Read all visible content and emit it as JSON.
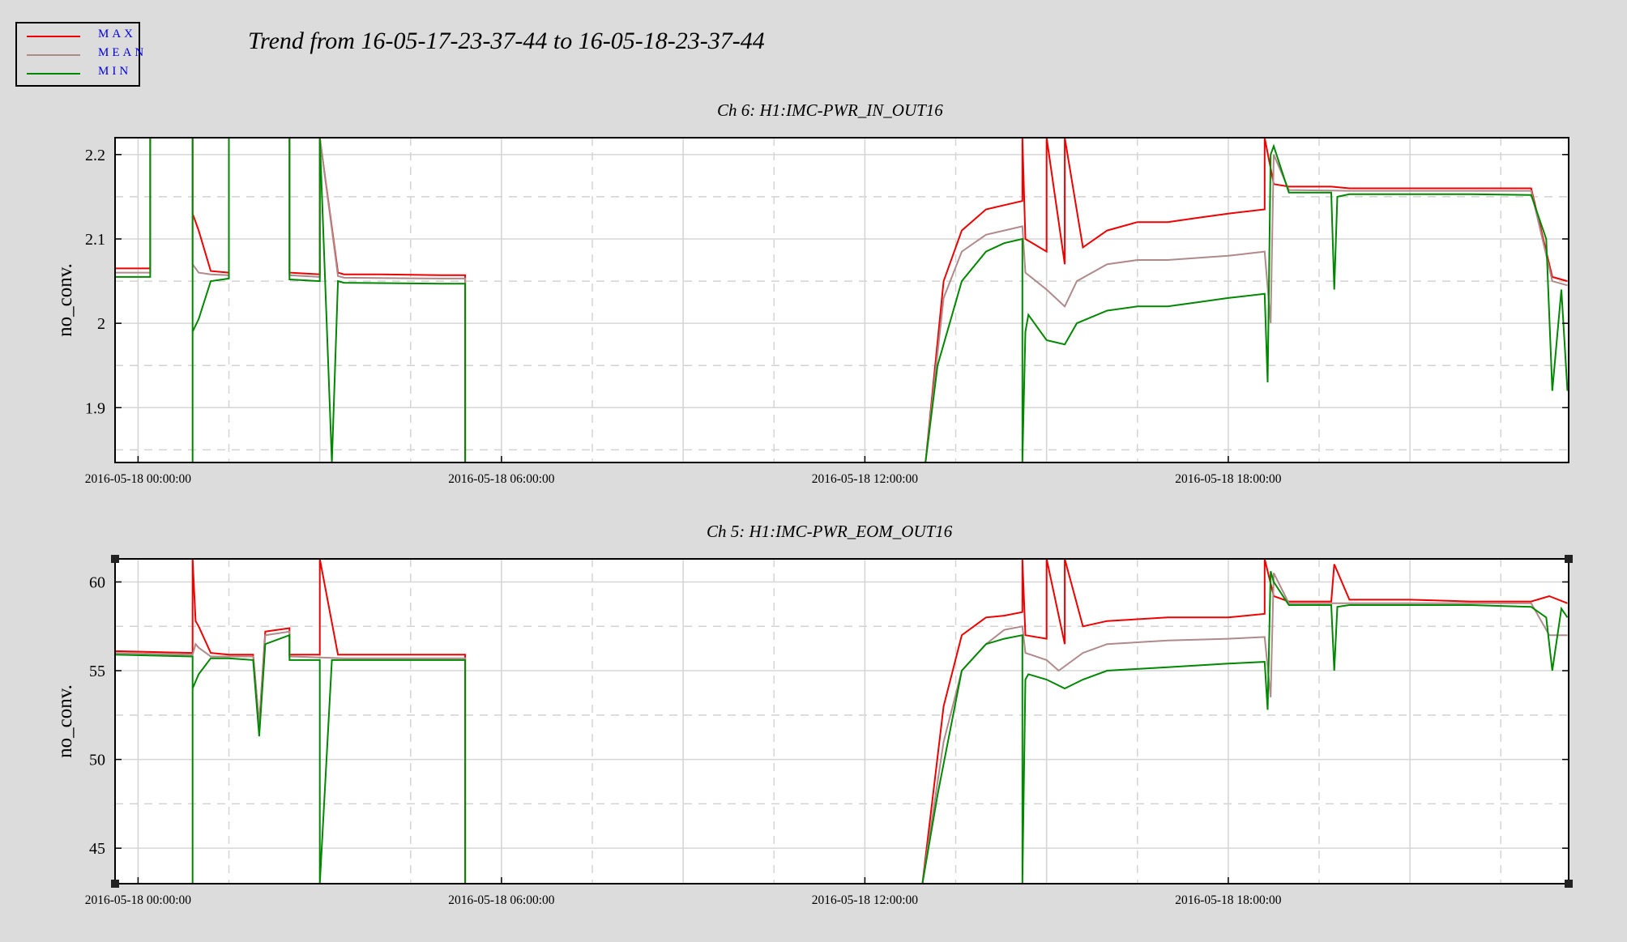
{
  "header": {
    "title": "Trend from 16-05-17-23-37-44 to 16-05-18-23-37-44"
  },
  "legend": {
    "items": [
      {
        "label": "MAX",
        "color": "#ee0000"
      },
      {
        "label": "MEAN",
        "color": "#b08a8a"
      },
      {
        "label": "MIN",
        "color": "#008800"
      }
    ]
  },
  "chart_data": [
    {
      "type": "line",
      "title": "Ch 6: H1:IMC-PWR_IN_OUT16",
      "ylabel": "no_conv.",
      "xlabel": "",
      "x_unit": "hours since 2016-05-18 00:00:00",
      "xlim": [
        -0.38,
        23.62
      ],
      "ylim": [
        1.835,
        2.22
      ],
      "yticks": [
        1.9,
        2.0,
        2.1,
        2.2
      ],
      "ytick_labels": [
        "1.9",
        "2",
        "2.1",
        "2.2"
      ],
      "xticks": [
        0,
        6,
        12,
        18
      ],
      "xtick_labels": [
        "2016-05-18 00:00:00",
        "2016-05-18 06:00:00",
        "2016-05-18 12:00:00",
        "2016-05-18 18:00:00"
      ],
      "grid": true,
      "series": [
        {
          "name": "MAX",
          "color": "#ee0000",
          "x": [
            -0.38,
            0.2,
            0.2,
            0.9,
            0.9,
            1.0,
            1.2,
            1.5,
            1.5,
            2.5,
            2.5,
            3.0,
            3.0,
            3.3,
            3.4,
            4.0,
            5.0,
            5.4,
            5.4,
            13.0,
            13.3,
            13.6,
            14.0,
            14.3,
            14.6,
            14.6,
            14.65,
            15.0,
            15.0,
            15.3,
            15.3,
            15.6,
            16.0,
            16.5,
            17.0,
            17.5,
            18.0,
            18.6,
            18.6,
            18.75,
            19.0,
            19.7,
            20.0,
            20.8,
            21.5,
            22.5,
            23.0,
            23.35,
            23.6
          ],
          "values": [
            2.065,
            2.065,
            2.22,
            2.22,
            2.13,
            2.11,
            2.062,
            2.06,
            2.22,
            2.22,
            2.06,
            2.058,
            2.22,
            2.06,
            2.058,
            2.058,
            2.057,
            2.057,
            1.835,
            1.835,
            2.05,
            2.11,
            2.135,
            2.14,
            2.145,
            2.22,
            2.1,
            2.085,
            2.22,
            2.07,
            2.22,
            2.09,
            2.11,
            2.12,
            2.12,
            2.125,
            2.13,
            2.135,
            2.22,
            2.165,
            2.162,
            2.162,
            2.16,
            2.16,
            2.16,
            2.16,
            2.16,
            2.055,
            2.05
          ]
        },
        {
          "name": "MEAN",
          "color": "#b08a8a",
          "x": [
            -0.38,
            0.2,
            0.2,
            0.9,
            0.9,
            1.0,
            1.2,
            1.5,
            1.5,
            2.5,
            2.5,
            3.0,
            3.0,
            3.3,
            3.4,
            5.0,
            5.4,
            5.4,
            13.0,
            13.3,
            13.6,
            14.0,
            14.3,
            14.6,
            14.65,
            15.0,
            15.3,
            15.5,
            16.0,
            16.5,
            17.0,
            18.0,
            18.6,
            18.7,
            18.75,
            19.0,
            20.0,
            21.0,
            22.0,
            23.0,
            23.35,
            23.6
          ],
          "values": [
            2.06,
            2.06,
            2.22,
            2.22,
            2.07,
            2.06,
            2.058,
            2.057,
            2.22,
            2.22,
            2.057,
            2.055,
            2.22,
            2.056,
            2.054,
            2.053,
            2.053,
            1.835,
            1.835,
            2.03,
            2.085,
            2.105,
            2.11,
            2.115,
            2.06,
            2.04,
            2.02,
            2.05,
            2.07,
            2.075,
            2.075,
            2.08,
            2.085,
            2.0,
            2.2,
            2.158,
            2.157,
            2.157,
            2.157,
            2.157,
            2.05,
            2.045
          ]
        },
        {
          "name": "MIN",
          "color": "#008800",
          "x": [
            -0.38,
            0.2,
            0.2,
            0.9,
            0.9,
            0.9,
            1.0,
            1.2,
            1.5,
            1.5,
            2.5,
            2.5,
            3.0,
            3.0,
            3.2,
            3.3,
            3.4,
            5.0,
            5.4,
            5.4,
            13.0,
            13.2,
            13.6,
            14.0,
            14.3,
            14.6,
            14.6,
            14.65,
            14.7,
            15.0,
            15.3,
            15.5,
            16.0,
            16.5,
            17.0,
            17.5,
            18.0,
            18.6,
            18.65,
            18.7,
            18.75,
            19.0,
            19.7,
            19.75,
            19.8,
            20.0,
            21.0,
            22.0,
            23.0,
            23.25,
            23.35,
            23.5,
            23.6
          ],
          "values": [
            2.055,
            2.055,
            2.22,
            2.22,
            1.835,
            1.99,
            2.005,
            2.05,
            2.053,
            2.22,
            2.22,
            2.052,
            2.05,
            2.22,
            1.835,
            2.05,
            2.048,
            2.047,
            2.047,
            1.835,
            1.835,
            1.95,
            2.05,
            2.085,
            2.095,
            2.1,
            1.835,
            1.99,
            2.01,
            1.98,
            1.975,
            2.0,
            2.015,
            2.02,
            2.02,
            2.025,
            2.03,
            2.035,
            1.93,
            2.2,
            2.21,
            2.155,
            2.155,
            2.04,
            2.15,
            2.153,
            2.153,
            2.153,
            2.152,
            2.1,
            1.92,
            2.04,
            1.92
          ]
        }
      ]
    },
    {
      "type": "line",
      "title": "Ch 5: H1:IMC-PWR_EOM_OUT16",
      "ylabel": "no_conv.",
      "xlabel": "",
      "x_unit": "hours since 2016-05-18 00:00:00",
      "xlim": [
        -0.38,
        23.62
      ],
      "ylim": [
        43.0,
        61.3
      ],
      "yticks": [
        45,
        50,
        55,
        60
      ],
      "ytick_labels": [
        "45",
        "50",
        "55",
        "60"
      ],
      "xticks": [
        0,
        6,
        12,
        18
      ],
      "xtick_labels": [
        "2016-05-18 00:00:00",
        "2016-05-18 06:00:00",
        "2016-05-18 12:00:00",
        "2016-05-18 18:00:00"
      ],
      "grid": true,
      "series": [
        {
          "name": "MAX",
          "color": "#ee0000",
          "x": [
            -0.38,
            0.9,
            0.9,
            0.95,
            1.0,
            1.2,
            1.5,
            1.9,
            2.0,
            2.1,
            2.5,
            2.5,
            3.0,
            3.0,
            3.3,
            3.4,
            5.0,
            5.4,
            5.4,
            12.95,
            13.3,
            13.6,
            14.0,
            14.3,
            14.6,
            14.6,
            14.65,
            15.0,
            15.0,
            15.3,
            15.3,
            15.6,
            16.0,
            17.0,
            18.0,
            18.6,
            18.6,
            18.75,
            19.0,
            19.7,
            19.75,
            20.0,
            21.0,
            22.0,
            23.0,
            23.3,
            23.6
          ],
          "values": [
            56.1,
            56.0,
            61.3,
            57.8,
            57.5,
            56.0,
            55.9,
            55.9,
            52.0,
            57.2,
            57.4,
            55.9,
            55.9,
            61.3,
            55.9,
            55.9,
            55.9,
            55.9,
            43.0,
            43.0,
            53.0,
            57.0,
            58.0,
            58.1,
            58.3,
            61.3,
            57.0,
            56.8,
            61.3,
            56.5,
            61.3,
            57.5,
            57.8,
            58.0,
            58.0,
            58.2,
            61.3,
            59.2,
            58.9,
            58.9,
            61.0,
            59.0,
            59.0,
            58.9,
            58.9,
            59.2,
            58.8
          ]
        },
        {
          "name": "MEAN",
          "color": "#b08a8a",
          "x": [
            -0.38,
            0.9,
            0.95,
            1.0,
            1.2,
            1.9,
            2.0,
            2.1,
            2.5,
            2.5,
            3.4,
            5.0,
            5.4,
            5.4,
            12.95,
            13.3,
            13.6,
            14.0,
            14.3,
            14.6,
            14.65,
            15.0,
            15.2,
            15.6,
            16.0,
            17.0,
            18.0,
            18.6,
            18.7,
            18.75,
            19.0,
            20.0,
            21.0,
            22.0,
            23.0,
            23.3,
            23.6
          ],
          "values": [
            56.0,
            55.9,
            56.5,
            56.3,
            55.8,
            55.8,
            52.0,
            57.0,
            57.2,
            55.8,
            55.7,
            55.7,
            55.7,
            43.0,
            43.0,
            51.0,
            55.0,
            56.5,
            57.3,
            57.5,
            56.0,
            55.6,
            55.0,
            56.0,
            56.5,
            56.7,
            56.8,
            56.9,
            53.5,
            60.5,
            58.8,
            58.8,
            58.8,
            58.8,
            58.8,
            57.0,
            57.0
          ]
        },
        {
          "name": "MIN",
          "color": "#008800",
          "x": [
            -0.38,
            0.9,
            0.9,
            0.9,
            1.0,
            1.2,
            1.5,
            1.9,
            2.0,
            2.1,
            2.5,
            2.5,
            3.0,
            3.0,
            3.2,
            3.3,
            3.4,
            5.0,
            5.4,
            5.4,
            12.95,
            13.2,
            13.6,
            14.0,
            14.3,
            14.6,
            14.6,
            14.65,
            14.7,
            15.0,
            15.3,
            15.6,
            16.0,
            17.0,
            18.0,
            18.6,
            18.65,
            18.7,
            18.75,
            19.0,
            19.7,
            19.75,
            19.8,
            20.0,
            21.0,
            22.0,
            23.0,
            23.25,
            23.35,
            23.5,
            23.6
          ],
          "values": [
            55.9,
            55.8,
            43.0,
            54.0,
            54.8,
            55.7,
            55.7,
            55.6,
            51.3,
            56.5,
            57.0,
            55.6,
            55.6,
            43.0,
            55.6,
            55.6,
            55.6,
            55.6,
            55.6,
            43.0,
            43.0,
            48.0,
            55.0,
            56.5,
            56.8,
            57.0,
            43.0,
            54.5,
            54.8,
            54.5,
            54.0,
            54.5,
            55.0,
            55.2,
            55.4,
            55.5,
            52.8,
            60.6,
            60.0,
            58.7,
            58.7,
            55.0,
            58.6,
            58.7,
            58.7,
            58.7,
            58.6,
            58.0,
            55.0,
            58.5,
            58.0
          ]
        }
      ]
    }
  ]
}
